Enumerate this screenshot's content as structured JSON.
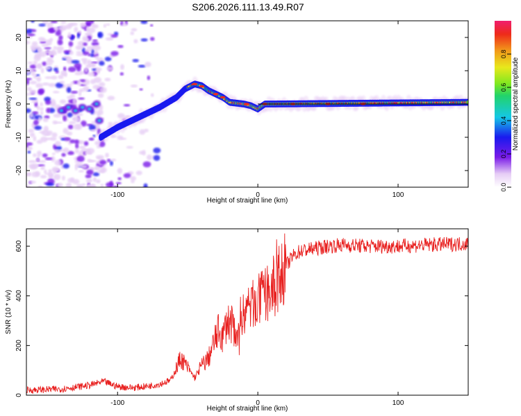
{
  "figure": {
    "title": "S206.2026.111.13.49.R07"
  },
  "colors": {
    "axis": "#000000",
    "snr_line": "#e8201f",
    "trend_line": "#000000"
  },
  "chart_data": [
    {
      "type": "heatmap",
      "title": "S206.2026.111.13.49.R07",
      "xlabel": "Height of straight line (km)",
      "ylabel": "Frequency (Hz)",
      "xlim": [
        -165,
        150
      ],
      "ylim": [
        -25,
        25
      ],
      "x_ticks": [
        -100,
        0,
        100
      ],
      "y_ticks": [
        -20,
        -10,
        0,
        10,
        20
      ],
      "ridge": {
        "description_points_x": [
          -112,
          -100,
          -85,
          -70,
          -58,
          -52,
          -45,
          -40,
          -35,
          -30,
          -25,
          -20,
          -10,
          -5,
          0,
          5,
          10,
          150
        ],
        "description_points_y": [
          -10,
          -7,
          -4,
          -1,
          2,
          4.5,
          6,
          5.5,
          4,
          3,
          2,
          0.5,
          0,
          -0.5,
          -1.5,
          0,
          0,
          0.5
        ]
      },
      "trend_line": {
        "x": [
          0,
          150
        ],
        "y": [
          0,
          0
        ]
      },
      "colorbar": {
        "label": "Normalized spectral amplitude",
        "range": [
          0,
          1
        ],
        "ticks": [
          "0.0",
          "0.2",
          "0.4",
          "0.6",
          "0.8"
        ]
      }
    },
    {
      "type": "line",
      "xlabel": "Height of straight line (km)",
      "ylabel": "SNR (10 * v/v)",
      "xlim": [
        -165,
        150
      ],
      "ylim": [
        0,
        670
      ],
      "x_ticks": [
        -100,
        0,
        100
      ],
      "y_ticks": [
        0,
        200,
        400,
        600
      ],
      "series": [
        {
          "name": "SNR",
          "envelope_x": [
            -165,
            -140,
            -120,
            -110,
            -100,
            -90,
            -80,
            -70,
            -62,
            -58,
            -55,
            -50,
            -45,
            -40,
            -35,
            -32,
            -28,
            -25,
            -22,
            -18,
            -15,
            -12,
            -10,
            -5,
            0,
            5,
            10,
            15,
            20,
            25,
            30,
            40,
            50,
            60,
            80,
            100,
            120,
            150
          ],
          "envelope_y": [
            20,
            25,
            40,
            55,
            35,
            30,
            35,
            45,
            60,
            110,
            150,
            110,
            70,
            120,
            150,
            200,
            260,
            230,
            300,
            280,
            250,
            320,
            330,
            360,
            380,
            400,
            430,
            470,
            520,
            560,
            580,
            590,
            600,
            605,
            600,
            600,
            605,
            610
          ]
        }
      ]
    }
  ]
}
